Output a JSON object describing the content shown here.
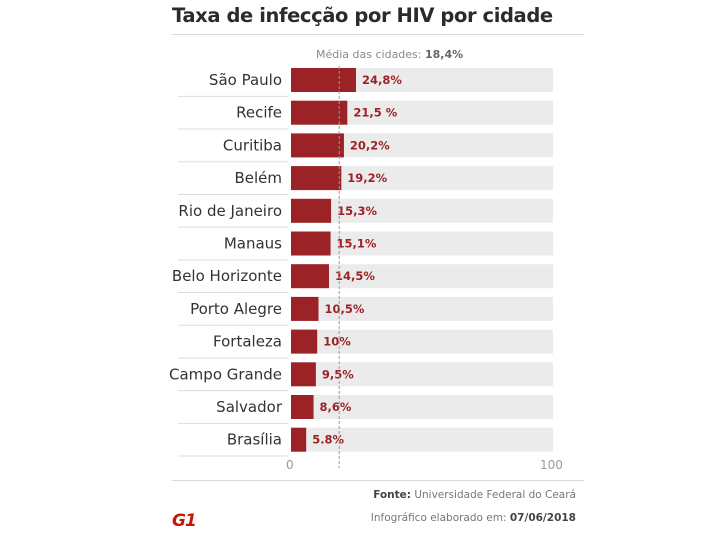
{
  "header": {
    "title": "Taxa de infecção por HIV por cidade"
  },
  "chart_data": {
    "type": "bar",
    "orientation": "horizontal",
    "title": "Taxa de infecção por HIV por cidade",
    "categories": [
      "São Paulo",
      "Recife",
      "Curitiba",
      "Belém",
      "Rio de Janeiro",
      "Manaus",
      "Belo Horizonte",
      "Porto Alegre",
      "Fortaleza",
      "Campo Grande",
      "Salvador",
      "Brasília"
    ],
    "values": [
      24.8,
      21.5,
      20.2,
      19.2,
      15.3,
      15.1,
      14.5,
      10.5,
      10,
      9.5,
      8.6,
      5.8
    ],
    "value_labels": [
      "24,8%",
      "21,5 %",
      "20,2%",
      "19,2%",
      "15,3%",
      "15,1%",
      "14,5%",
      "10,5%",
      "10%",
      "9,5%",
      "8,6%",
      "5.8%"
    ],
    "xlim": [
      0,
      100
    ],
    "tick_labels": [
      "0",
      "100"
    ],
    "reference_line": {
      "value": 18.4,
      "label": "Média das cidades:",
      "value_label": "18,4%"
    },
    "bar_color": "#9b2226",
    "track_color": "#ebebeb"
  },
  "footer": {
    "source_label": "Fonte:",
    "source_value": "Universidade Federal do Ceará",
    "date_label": "Infográfico elaborado em:",
    "date_value": "07/06/2018",
    "logo": "G1"
  }
}
